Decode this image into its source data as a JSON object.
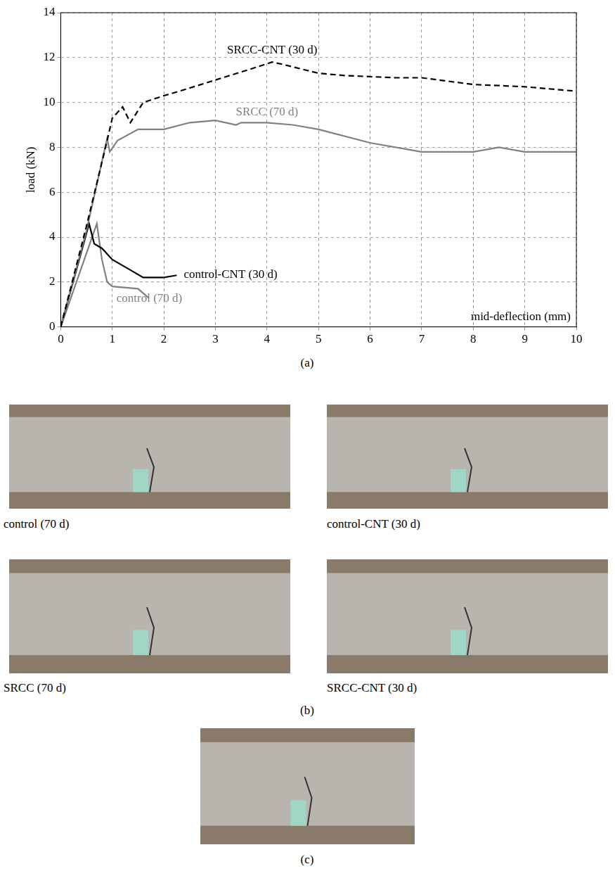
{
  "chart_data": {
    "type": "line",
    "x_label": "mid-deflection (mm)",
    "y_label": "load (kN)",
    "xlim": [
      0,
      10
    ],
    "xticks": [
      0,
      1,
      2,
      3,
      4,
      5,
      6,
      7,
      8,
      9,
      10
    ],
    "ylim": [
      0,
      14
    ],
    "yticks": [
      0,
      2,
      4,
      6,
      8,
      10,
      12,
      14
    ],
    "grid": true,
    "series": [
      {
        "name": "SRCC-CNT (30 d)",
        "color": "#000000",
        "line_style": "dashed",
        "x": [
          0,
          0.5,
          0.9,
          1.0,
          1.2,
          1.35,
          1.6,
          2,
          2.3,
          3,
          3.7,
          4.1,
          4.3,
          5,
          5.5,
          6.5,
          7,
          8,
          9,
          10
        ],
        "values": [
          0,
          4.5,
          8.3,
          9.3,
          9.8,
          9.1,
          10,
          10.3,
          10.5,
          11,
          11.5,
          11.8,
          11.7,
          11.3,
          11.2,
          11.1,
          11.1,
          10.8,
          10.7,
          10.5
        ]
      },
      {
        "name": "SRCC (70 d)",
        "color": "#808080",
        "line_style": "solid",
        "x": [
          0,
          0.5,
          0.9,
          0.95,
          1.1,
          1.5,
          2,
          2.5,
          3,
          3.4,
          3.5,
          4,
          4.5,
          5,
          6,
          7,
          8,
          8.5,
          9,
          10
        ],
        "values": [
          0,
          4.3,
          8.4,
          7.8,
          8.3,
          8.8,
          8.8,
          9.1,
          9.2,
          9.0,
          9.1,
          9.1,
          9.0,
          8.8,
          8.2,
          7.8,
          7.8,
          8.0,
          7.8,
          7.8
        ]
      },
      {
        "name": "control-CNT (30 d)",
        "color": "#000000",
        "line_style": "solid",
        "x": [
          0,
          0.55,
          0.65,
          0.8,
          1.0,
          1.3,
          1.6,
          2,
          2.25
        ],
        "values": [
          0,
          4.6,
          3.7,
          3.5,
          3.0,
          2.6,
          2.2,
          2.2,
          2.3
        ]
      },
      {
        "name": "control (70 d)",
        "color": "#808080",
        "line_style": "solid",
        "x": [
          0,
          0.7,
          0.8,
          0.9,
          1.0,
          1.5,
          1.7
        ],
        "values": [
          0,
          4.6,
          3.0,
          2.0,
          1.8,
          1.7,
          1.3
        ]
      }
    ]
  },
  "figure": {
    "panel_labels": [
      "(a)",
      "(b)",
      "(c)"
    ],
    "photos_b": [
      {
        "caption": "control (70 d)"
      },
      {
        "caption": "control-CNT (30 d)"
      },
      {
        "caption": "SRCC (70 d)"
      },
      {
        "caption": "SRCC-CNT (30 d)"
      }
    ]
  }
}
